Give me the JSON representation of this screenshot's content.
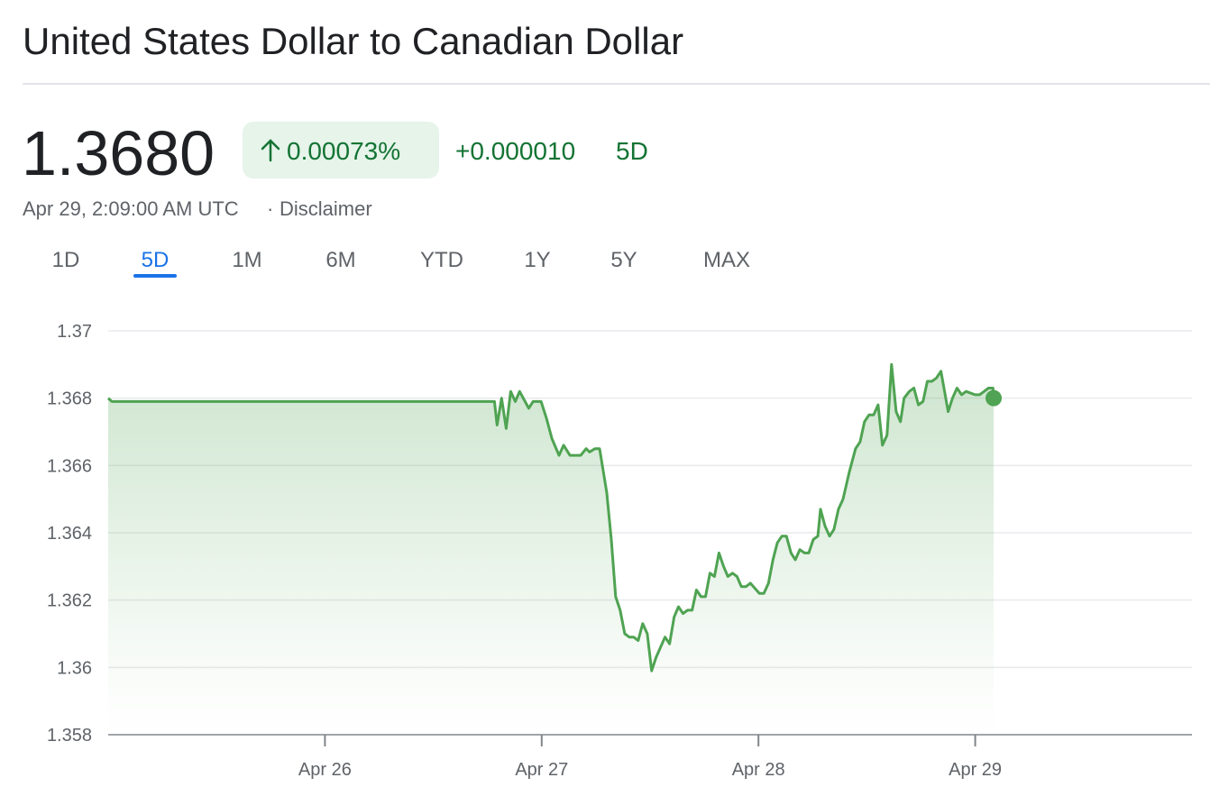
{
  "header": {
    "title": "United States Dollar to Canadian Dollar",
    "price": "1.3680",
    "change_percent": "0.00073%",
    "change_abs": "+0.000010",
    "change_period": "5D",
    "timestamp": "Apr 29, 2:09:00 AM UTC",
    "separator": "·",
    "disclaimer": "Disclaimer"
  },
  "tabs": [
    {
      "label": "1D",
      "selected": false
    },
    {
      "label": "5D",
      "selected": true
    },
    {
      "label": "1M",
      "selected": false
    },
    {
      "label": "6M",
      "selected": false
    },
    {
      "label": "YTD",
      "selected": false
    },
    {
      "label": "1Y",
      "selected": false
    },
    {
      "label": "5Y",
      "selected": false
    },
    {
      "label": "MAX",
      "selected": false
    }
  ],
  "chart_data": {
    "type": "line",
    "x": [
      25.0,
      25.017,
      26.782,
      26.794,
      26.815,
      26.836,
      26.857,
      26.878,
      26.898,
      26.94,
      26.96,
      26.997,
      27.022,
      27.047,
      27.08,
      27.101,
      27.13,
      27.18,
      27.205,
      27.221,
      27.246,
      27.267,
      27.3,
      27.321,
      27.341,
      27.362,
      27.383,
      27.404,
      27.424,
      27.445,
      27.466,
      27.487,
      27.507,
      27.528,
      27.569,
      27.59,
      27.611,
      27.631,
      27.652,
      27.673,
      27.694,
      27.714,
      27.735,
      27.756,
      27.776,
      27.797,
      27.818,
      27.839,
      27.859,
      27.88,
      27.901,
      27.921,
      27.942,
      27.963,
      28.004,
      28.025,
      28.046,
      28.067,
      28.087,
      28.108,
      28.129,
      28.15,
      28.17,
      28.191,
      28.212,
      28.232,
      28.253,
      28.274,
      28.286,
      28.307,
      28.328,
      28.348,
      28.369,
      28.39,
      28.419,
      28.448,
      28.469,
      28.489,
      28.51,
      28.531,
      28.552,
      28.572,
      28.593,
      28.614,
      28.635,
      28.655,
      28.672,
      28.696,
      28.717,
      28.738,
      28.759,
      28.779,
      28.8,
      28.821,
      28.842,
      28.875,
      28.895,
      28.916,
      28.937,
      28.958,
      28.999,
      29.02,
      29.041,
      29.061,
      29.082,
      29.085
    ],
    "series": [
      {
        "color": "#4fa352",
        "values": [
          1.368,
          1.3679,
          1.3679,
          1.3672,
          1.368,
          1.3671,
          1.3682,
          1.3679,
          1.3682,
          1.3677,
          1.3679,
          1.3679,
          1.3674,
          1.3668,
          1.3663,
          1.3666,
          1.3663,
          1.3663,
          1.3665,
          1.3664,
          1.3665,
          1.3665,
          1.3652,
          1.3638,
          1.3621,
          1.3617,
          1.361,
          1.3609,
          1.3609,
          1.3608,
          1.3613,
          1.361,
          1.3599,
          1.3603,
          1.3609,
          1.3607,
          1.3615,
          1.3618,
          1.3616,
          1.3617,
          1.3617,
          1.3623,
          1.3621,
          1.3621,
          1.3628,
          1.3627,
          1.3634,
          1.363,
          1.3627,
          1.3628,
          1.3627,
          1.3624,
          1.3624,
          1.3625,
          1.3622,
          1.3622,
          1.3625,
          1.3632,
          1.3637,
          1.3639,
          1.3639,
          1.3634,
          1.3632,
          1.3635,
          1.3634,
          1.3634,
          1.3638,
          1.3639,
          1.3647,
          1.3642,
          1.3639,
          1.3641,
          1.3647,
          1.365,
          1.3658,
          1.3665,
          1.3667,
          1.3673,
          1.3675,
          1.3675,
          1.3678,
          1.3666,
          1.3669,
          1.369,
          1.3676,
          1.3673,
          1.368,
          1.3682,
          1.3683,
          1.3678,
          1.3679,
          1.3685,
          1.3685,
          1.3686,
          1.3688,
          1.3676,
          1.368,
          1.3683,
          1.3681,
          1.3682,
          1.3681,
          1.3681,
          1.3682,
          1.3683,
          1.3683,
          1.368
        ]
      }
    ],
    "xlim": [
      25,
      30
    ],
    "xticks": [
      {
        "value": 26,
        "label": "Apr 26"
      },
      {
        "value": 27,
        "label": "Apr 27"
      },
      {
        "value": 28,
        "label": "Apr 28"
      },
      {
        "value": 29,
        "label": "Apr 29"
      }
    ],
    "ylim": [
      1.358,
      1.37
    ],
    "yticks": [
      1.358,
      1.36,
      1.362,
      1.364,
      1.366,
      1.368,
      1.37
    ],
    "grid": true,
    "area_fill": true,
    "last_point_marker": true
  }
}
